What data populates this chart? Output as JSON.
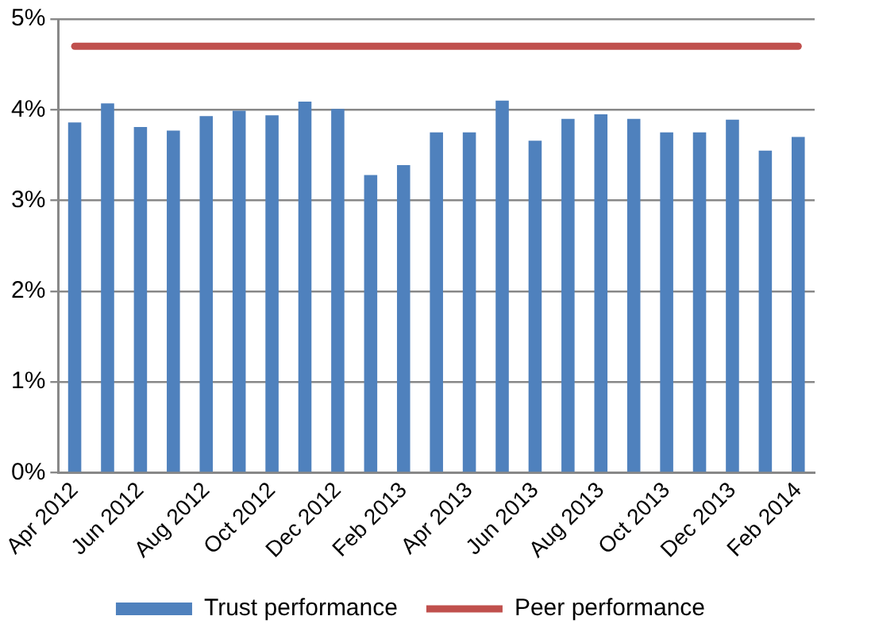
{
  "chart_data": {
    "type": "bar",
    "categories": [
      "Apr 2012",
      null,
      "Jun 2012",
      null,
      "Aug 2012",
      null,
      "Oct 2012",
      null,
      "Dec 2012",
      null,
      "Feb 2013",
      null,
      "Apr 2013",
      null,
      "Jun 2013",
      null,
      "Aug 2013",
      null,
      "Oct 2013",
      null,
      "Dec 2013",
      null,
      "Feb 2014"
    ],
    "series": [
      {
        "name": "Trust performance",
        "color": "#4f81bd",
        "values": [
          3.86,
          4.07,
          3.81,
          3.77,
          3.93,
          3.99,
          3.94,
          4.09,
          4.01,
          3.28,
          3.39,
          3.75,
          3.75,
          4.1,
          3.66,
          3.9,
          3.95,
          3.9,
          3.75,
          3.75,
          3.89,
          3.55,
          3.7
        ]
      },
      {
        "name": "Peer performance",
        "type": "line",
        "color": "#c0504d",
        "values": [
          4.7,
          4.7,
          4.7,
          4.7,
          4.7,
          4.7,
          4.7,
          4.7,
          4.7,
          4.7,
          4.7,
          4.7,
          4.7,
          4.7,
          4.7,
          4.7,
          4.7,
          4.7,
          4.7,
          4.7,
          4.7,
          4.7,
          4.7
        ]
      }
    ],
    "ylim": [
      0,
      5
    ],
    "yticks": [
      {
        "value": 0,
        "label": "0%"
      },
      {
        "value": 1,
        "label": "1%"
      },
      {
        "value": 2,
        "label": "2%"
      },
      {
        "value": 3,
        "label": "3%"
      },
      {
        "value": 4,
        "label": "4%"
      },
      {
        "value": 5,
        "label": "5%"
      }
    ],
    "grid": "y",
    "legend": "bottom",
    "marker": "none",
    "line_style": "solid"
  }
}
